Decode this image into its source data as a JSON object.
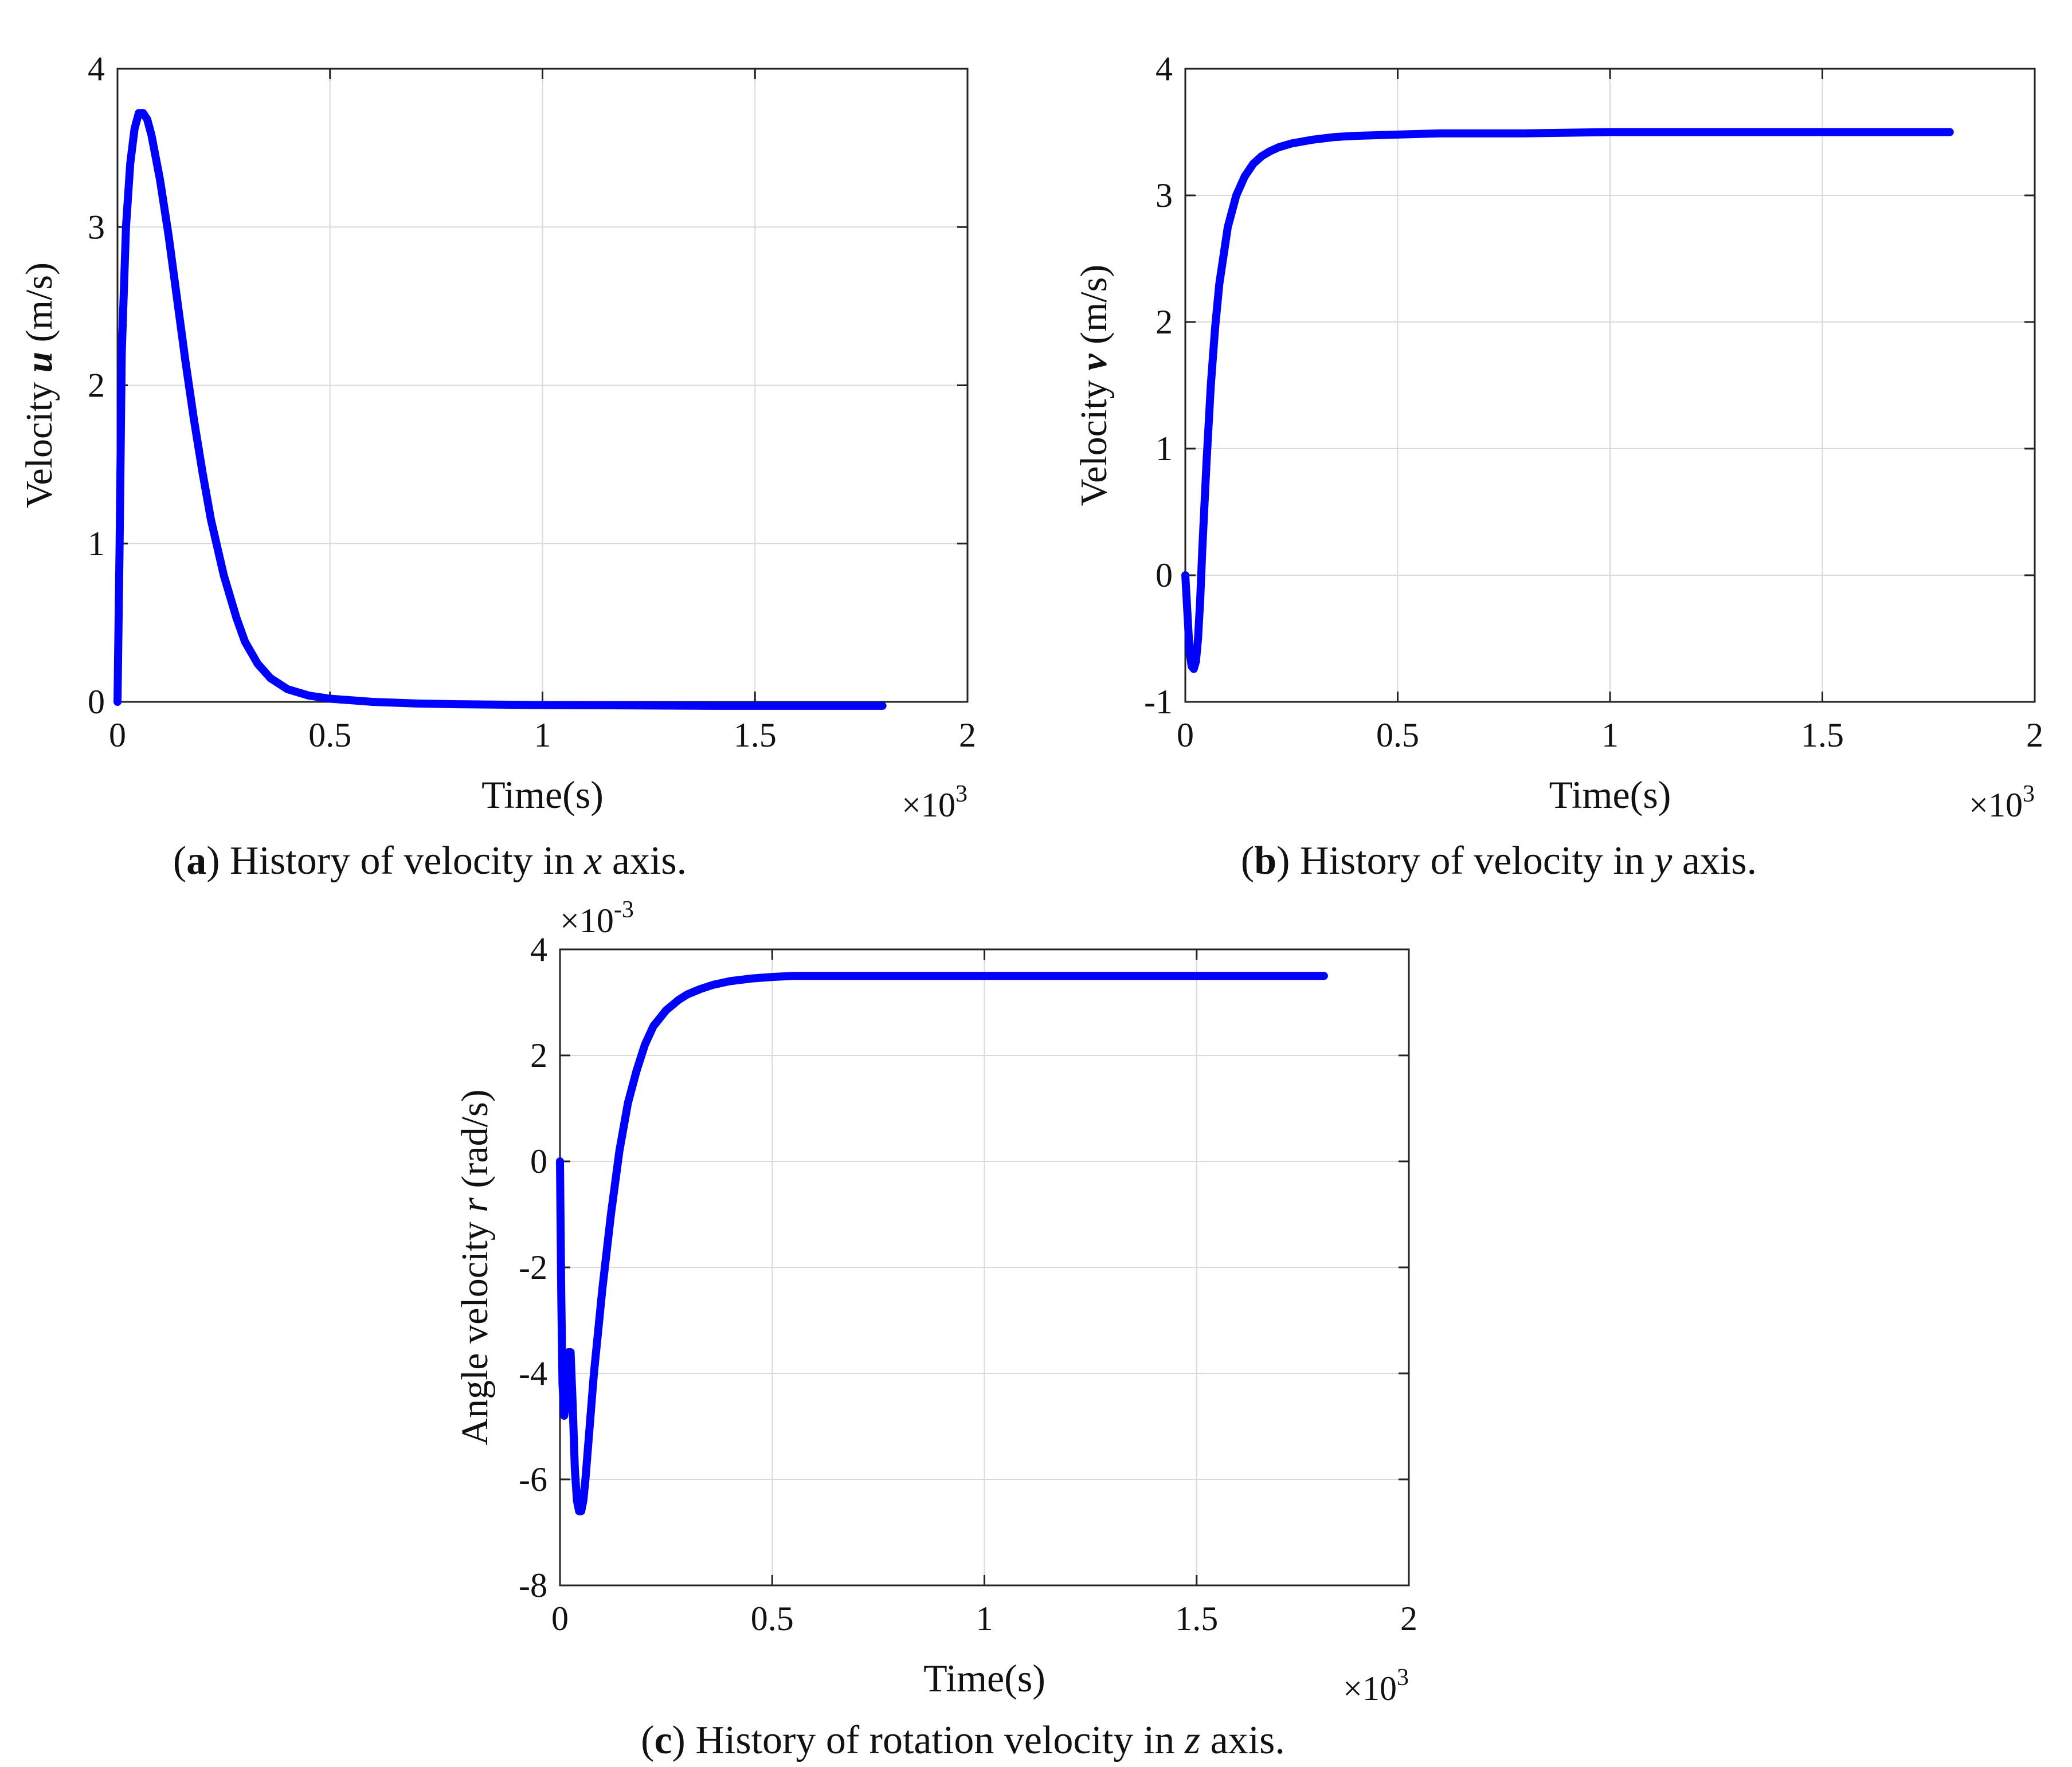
{
  "chart_data": [
    {
      "id": "a",
      "type": "line",
      "caption": {
        "letter": "a",
        "pre": "History of velocity in ",
        "var": "x",
        "post": " axis."
      },
      "xlabel": "Time(s)",
      "ylabel": {
        "pre": "Velocity ",
        "var": "u",
        "post": " (m/s)"
      },
      "xlim": [
        0,
        2
      ],
      "ylim": [
        0,
        4
      ],
      "xticks": [
        0,
        0.5,
        1,
        1.5,
        2
      ],
      "xtick_labels": [
        "0",
        "0.5",
        "1",
        "1.5",
        "2"
      ],
      "yticks": [
        0,
        1,
        2,
        3,
        4
      ],
      "ytick_labels": [
        "0",
        "1",
        "2",
        "3",
        "4"
      ],
      "x_multiplier": {
        "base": "×10",
        "exp": "3"
      },
      "color": "#0000ff",
      "series": [
        {
          "name": "u",
          "x": [
            0,
            0.005,
            0.01,
            0.02,
            0.03,
            0.04,
            0.05,
            0.06,
            0.07,
            0.08,
            0.1,
            0.12,
            0.14,
            0.16,
            0.18,
            0.2,
            0.22,
            0.25,
            0.28,
            0.3,
            0.33,
            0.36,
            0.4,
            0.45,
            0.5,
            0.55,
            0.6,
            0.7,
            0.8,
            1.0,
            1.2,
            1.4,
            1.6,
            1.8
          ],
          "y": [
            0,
            1.0,
            2.2,
            3.0,
            3.4,
            3.62,
            3.72,
            3.72,
            3.68,
            3.58,
            3.3,
            2.95,
            2.55,
            2.15,
            1.78,
            1.45,
            1.15,
            0.8,
            0.53,
            0.38,
            0.24,
            0.15,
            0.08,
            0.04,
            0.02,
            0.01,
            0.0,
            -0.01,
            -0.015,
            -0.02,
            -0.022,
            -0.025,
            -0.025,
            -0.025
          ]
        }
      ]
    },
    {
      "id": "b",
      "type": "line",
      "caption": {
        "letter": "b",
        "pre": "History of velocity in ",
        "var": "y",
        "post": " axis."
      },
      "xlabel": "Time(s)",
      "ylabel": {
        "pre": "Velocity ",
        "var": "v",
        "post": " (m/s)"
      },
      "xlim": [
        0,
        2
      ],
      "ylim": [
        -1,
        4
      ],
      "xticks": [
        0,
        0.5,
        1,
        1.5,
        2
      ],
      "xtick_labels": [
        "0",
        "0.5",
        "1",
        "1.5",
        "2"
      ],
      "yticks": [
        -1,
        0,
        1,
        2,
        3,
        4
      ],
      "ytick_labels": [
        "-1",
        "0",
        "1",
        "2",
        "3",
        "4"
      ],
      "x_multiplier": {
        "base": "×10",
        "exp": "3"
      },
      "color": "#0000ff",
      "series": [
        {
          "name": "v",
          "x": [
            0,
            0.005,
            0.01,
            0.015,
            0.02,
            0.025,
            0.03,
            0.035,
            0.04,
            0.05,
            0.06,
            0.07,
            0.08,
            0.1,
            0.12,
            0.14,
            0.16,
            0.18,
            0.2,
            0.22,
            0.25,
            0.3,
            0.35,
            0.4,
            0.5,
            0.6,
            0.8,
            1.0,
            1.4,
            1.8
          ],
          "y": [
            0,
            -0.3,
            -0.6,
            -0.72,
            -0.74,
            -0.68,
            -0.5,
            -0.2,
            0.2,
            0.9,
            1.5,
            1.95,
            2.3,
            2.75,
            3.0,
            3.15,
            3.25,
            3.31,
            3.35,
            3.38,
            3.41,
            3.44,
            3.46,
            3.47,
            3.48,
            3.49,
            3.49,
            3.5,
            3.5,
            3.5
          ]
        }
      ]
    },
    {
      "id": "c",
      "type": "line",
      "caption": {
        "letter": "c",
        "pre": "History of rotation velocity in ",
        "var": "z",
        "post": " axis."
      },
      "xlabel": "Time(s)",
      "ylabel": {
        "pre": "Angle velocity  ",
        "var": "r",
        "post": " (rad/s)"
      },
      "xlim": [
        0,
        2
      ],
      "ylim": [
        -8,
        4
      ],
      "xticks": [
        0,
        0.5,
        1,
        1.5,
        2
      ],
      "xtick_labels": [
        "0",
        "0.5",
        "1",
        "1.5",
        "2"
      ],
      "yticks": [
        -8,
        -6,
        -4,
        -2,
        0,
        2,
        4
      ],
      "ytick_labels": [
        "-8",
        "-6",
        "-4",
        "-2",
        "0",
        "2",
        "4"
      ],
      "x_multiplier": {
        "base": "×10",
        "exp": "3"
      },
      "y_multiplier": {
        "base": "×10",
        "exp": "-3"
      },
      "color": "#0000ff",
      "series": [
        {
          "name": "r",
          "x": [
            0,
            0.003,
            0.006,
            0.01,
            0.015,
            0.02,
            0.025,
            0.03,
            0.035,
            0.04,
            0.045,
            0.05,
            0.055,
            0.06,
            0.07,
            0.08,
            0.1,
            0.12,
            0.14,
            0.16,
            0.18,
            0.2,
            0.22,
            0.25,
            0.28,
            0.3,
            0.33,
            0.36,
            0.4,
            0.45,
            0.5,
            0.55,
            0.6,
            0.7,
            0.8,
            1.0,
            1.2,
            1.4,
            1.6,
            1.8
          ],
          "y": [
            0,
            -2.5,
            -4.2,
            -4.8,
            -4.5,
            -3.6,
            -3.6,
            -4.6,
            -5.8,
            -6.4,
            -6.6,
            -6.6,
            -6.4,
            -6.0,
            -5.0,
            -4.0,
            -2.4,
            -1.0,
            0.2,
            1.1,
            1.7,
            2.2,
            2.55,
            2.85,
            3.05,
            3.15,
            3.25,
            3.33,
            3.4,
            3.45,
            3.48,
            3.5,
            3.5,
            3.5,
            3.5,
            3.5,
            3.5,
            3.5,
            3.5,
            3.5
          ]
        }
      ]
    }
  ]
}
